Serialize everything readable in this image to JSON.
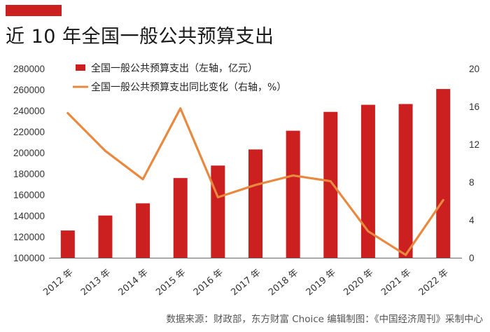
{
  "header": {
    "title": "近 10 年全国一般公共预算支出"
  },
  "footer": {
    "source": "数据来源：财政部，东方财富 Choice  编辑制图：《中国经济周刊》采制中心"
  },
  "colors": {
    "bar": "#cc1f1f",
    "line": "#e8893f",
    "accent": "#cc1f1f"
  },
  "chart_data": {
    "type": "bar",
    "categories": [
      "2012 年",
      "2013 年",
      "2014 年",
      "2015 年",
      "2016 年",
      "2017 年",
      "2018 年",
      "2019 年",
      "2020 年",
      "2021 年",
      "2022 年"
    ],
    "series": [
      {
        "name": "全国一般公共预算支出（左轴，亿元）",
        "type": "bar",
        "axis": "left",
        "values": [
          125953,
          140212,
          151786,
          175878,
          187755,
          203085,
          220904,
          238858,
          245588,
          246322,
          260609
        ]
      },
      {
        "name": "全国一般公共预算支出同比变化（右轴，%）",
        "type": "line",
        "axis": "right",
        "values": [
          15.3,
          11.3,
          8.3,
          15.8,
          6.4,
          7.7,
          8.7,
          8.1,
          2.8,
          0.3,
          6.1
        ]
      }
    ],
    "y_left": {
      "min": 100000,
      "max": 280000,
      "ticks": [
        "100000",
        "120000",
        "140000",
        "160000",
        "180000",
        "200000",
        "220000",
        "240000",
        "260000",
        "280000"
      ]
    },
    "y_right": {
      "min": 0,
      "max": 20,
      "ticks": [
        "0",
        "4",
        "8",
        "12",
        "16",
        "20"
      ]
    },
    "legend_position": "top-left"
  }
}
